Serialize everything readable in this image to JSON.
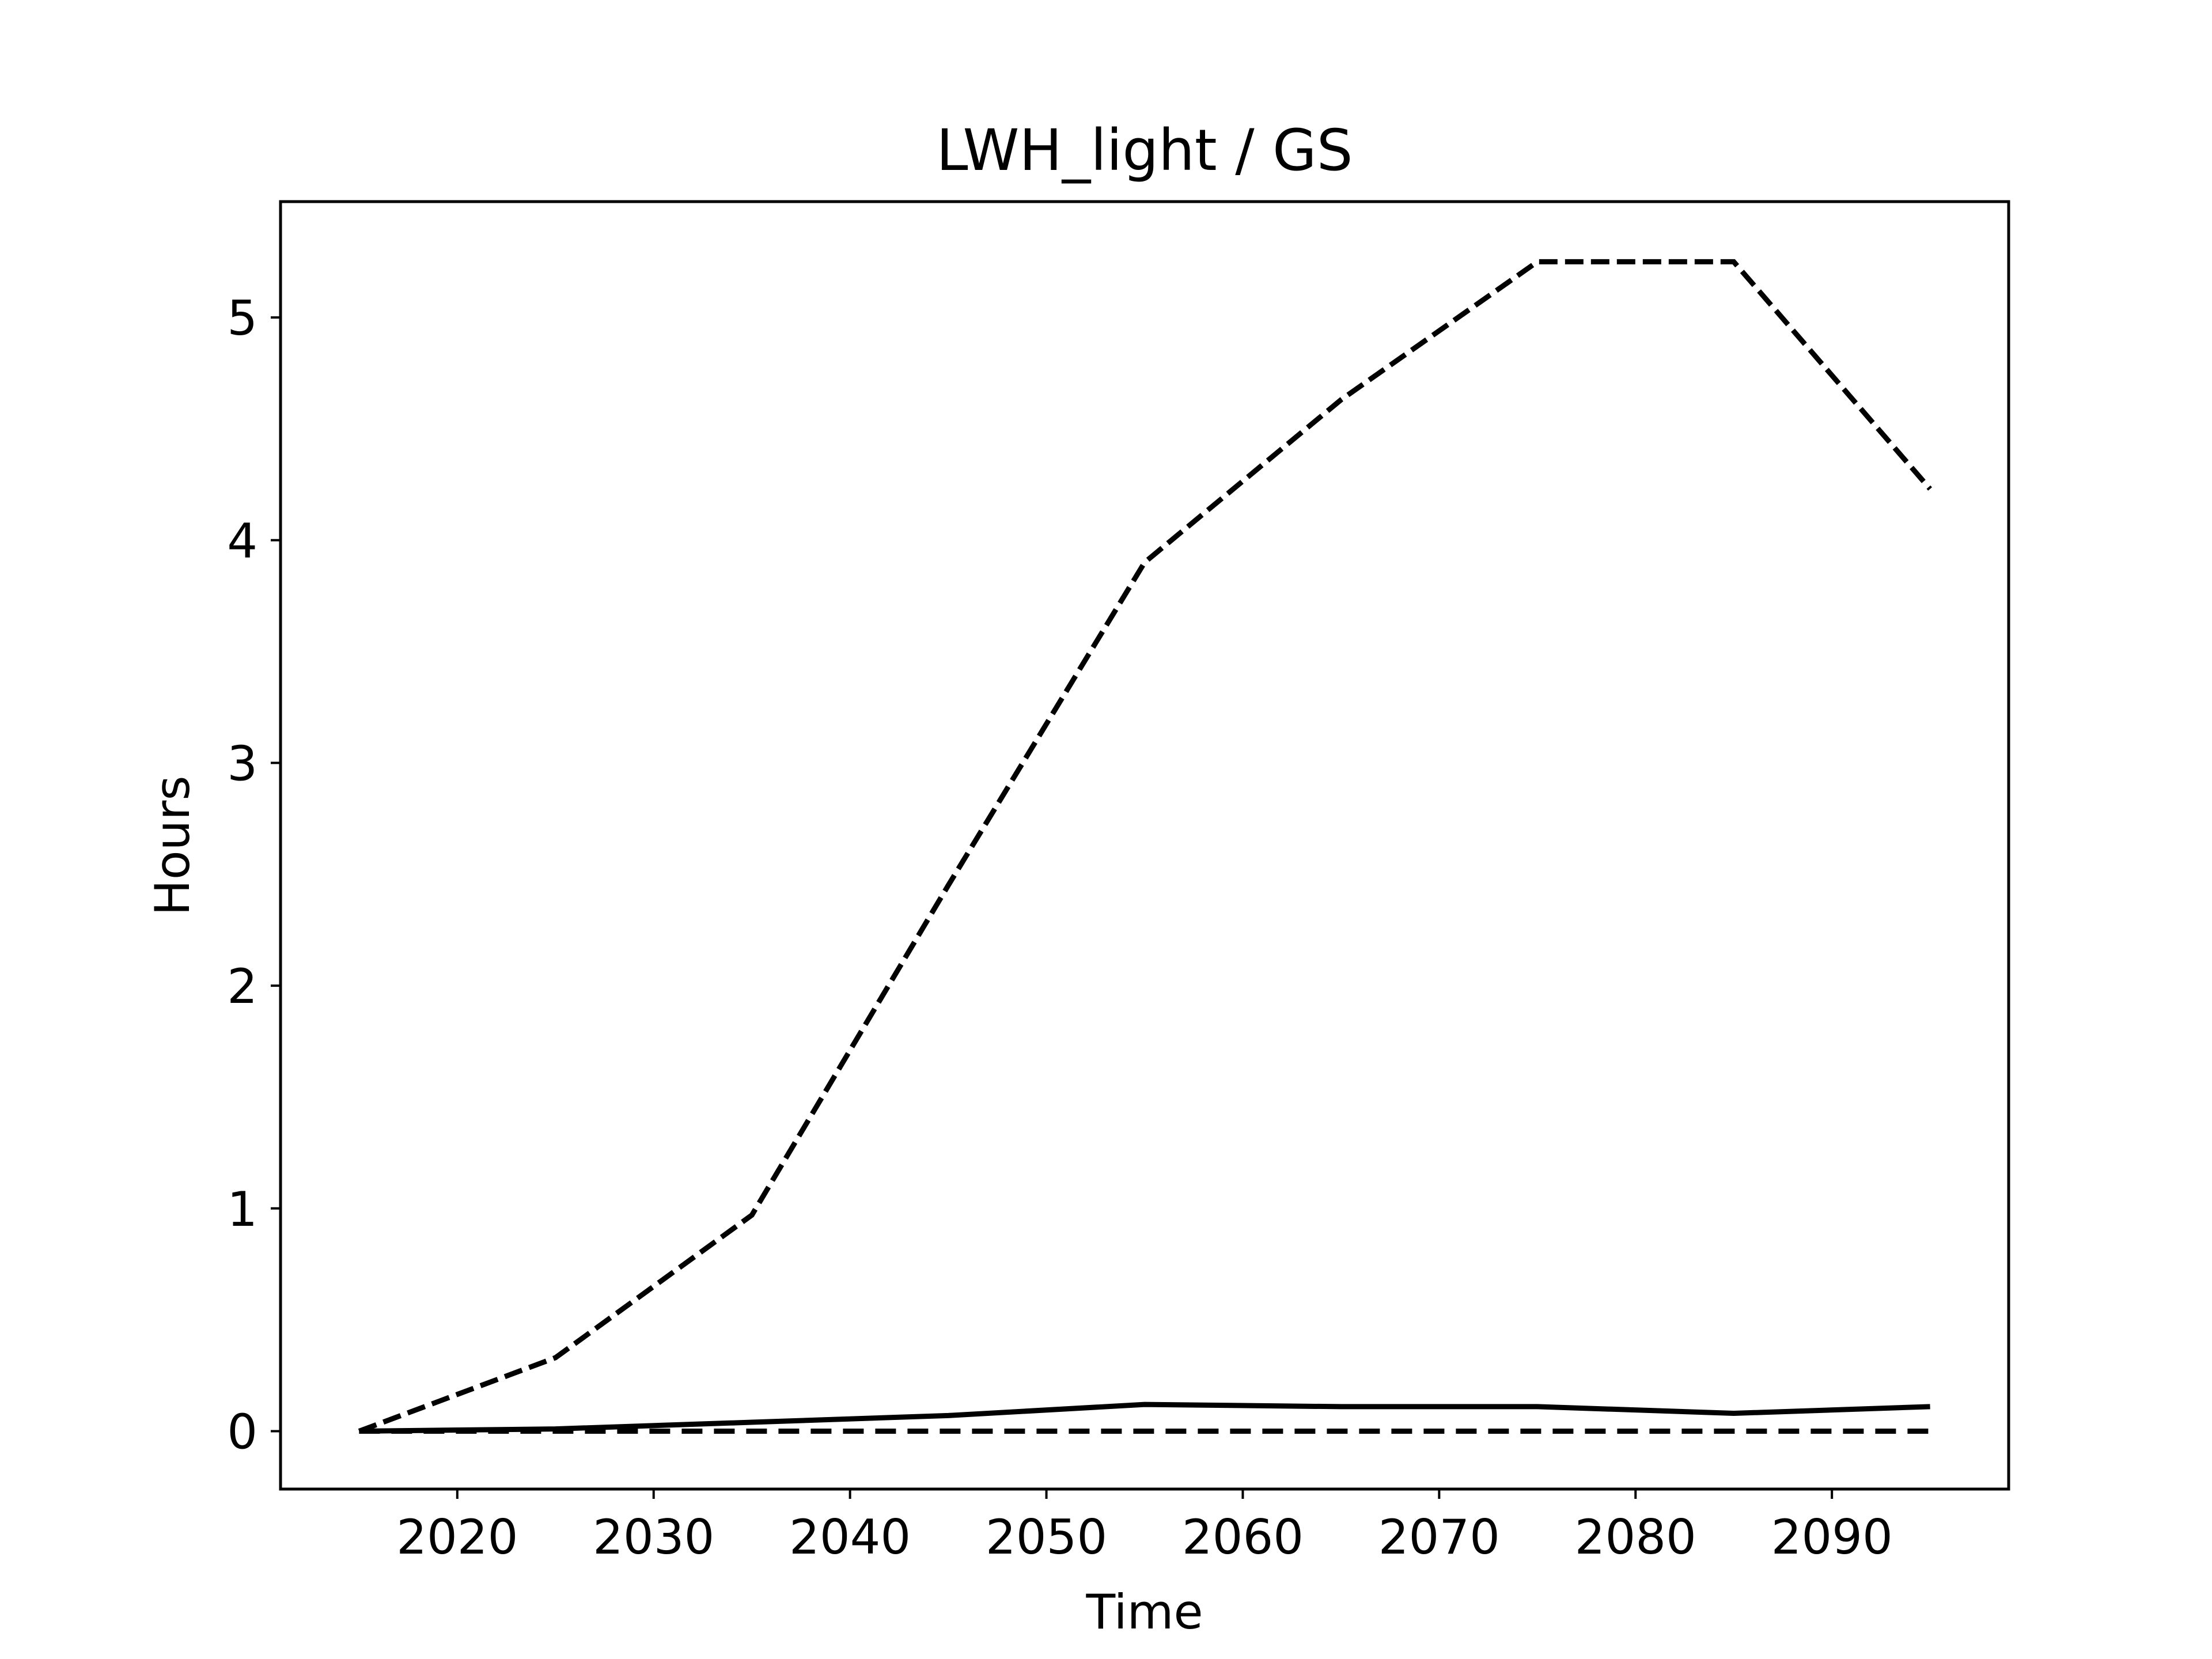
{
  "chart_data": {
    "type": "line",
    "title": "LWH_light / GS",
    "xlabel": "Time",
    "ylabel": "Hours",
    "xlim": [
      2011,
      2099
    ],
    "ylim": [
      -0.26,
      5.52
    ],
    "xticks": [
      2020,
      2030,
      2040,
      2050,
      2060,
      2070,
      2080,
      2090
    ],
    "yticks": [
      0,
      1,
      2,
      3,
      4,
      5
    ],
    "grid": false,
    "x": [
      2015,
      2025,
      2035,
      2045,
      2055,
      2065,
      2075,
      2085,
      2095
    ],
    "series": [
      {
        "style": "dashed-fine",
        "color": "#000000",
        "values": [
          0.0,
          0.33,
          0.97,
          2.45,
          3.9,
          4.63,
          5.25,
          5.25,
          4.23
        ]
      },
      {
        "style": "solid",
        "color": "#000000",
        "values": [
          0.0,
          0.01,
          0.04,
          0.07,
          0.12,
          0.11,
          0.11,
          0.08,
          0.11
        ]
      },
      {
        "style": "dashed",
        "color": "#000000",
        "values": [
          0.0,
          0.0,
          0.0,
          0.0,
          0.0,
          0.0,
          0.0,
          0.0,
          0.0
        ]
      }
    ]
  }
}
